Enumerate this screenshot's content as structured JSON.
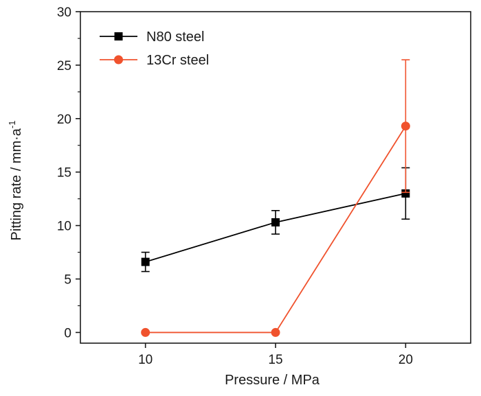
{
  "chart_data": {
    "type": "line",
    "xlabel": "Pressure / MPa",
    "ylabel_main": "Pitting rate / mm·a",
    "ylabel_sup": "-1",
    "x": [
      10,
      15,
      20
    ],
    "xticks": [
      10,
      15,
      20
    ],
    "xtick_labels": [
      "10",
      "15",
      "20"
    ],
    "xlim": [
      7.5,
      22.5
    ],
    "ylim": [
      -1,
      30
    ],
    "yticks": [
      0,
      5,
      10,
      15,
      20,
      25,
      30
    ],
    "ytick_labels": [
      "0",
      "5",
      "10",
      "15",
      "20",
      "25",
      "30"
    ],
    "grid": false,
    "legend_position": "top-left",
    "series": [
      {
        "name": "N80 steel",
        "marker": "square",
        "color": "#000000",
        "values": [
          6.6,
          10.3,
          13.0
        ],
        "errors": [
          0.9,
          1.1,
          2.4
        ]
      },
      {
        "name": "13Cr steel",
        "marker": "circle",
        "color": "#f0522d",
        "values": [
          0.0,
          0.0,
          19.3
        ],
        "errors": [
          0,
          0,
          6.2
        ]
      }
    ]
  }
}
